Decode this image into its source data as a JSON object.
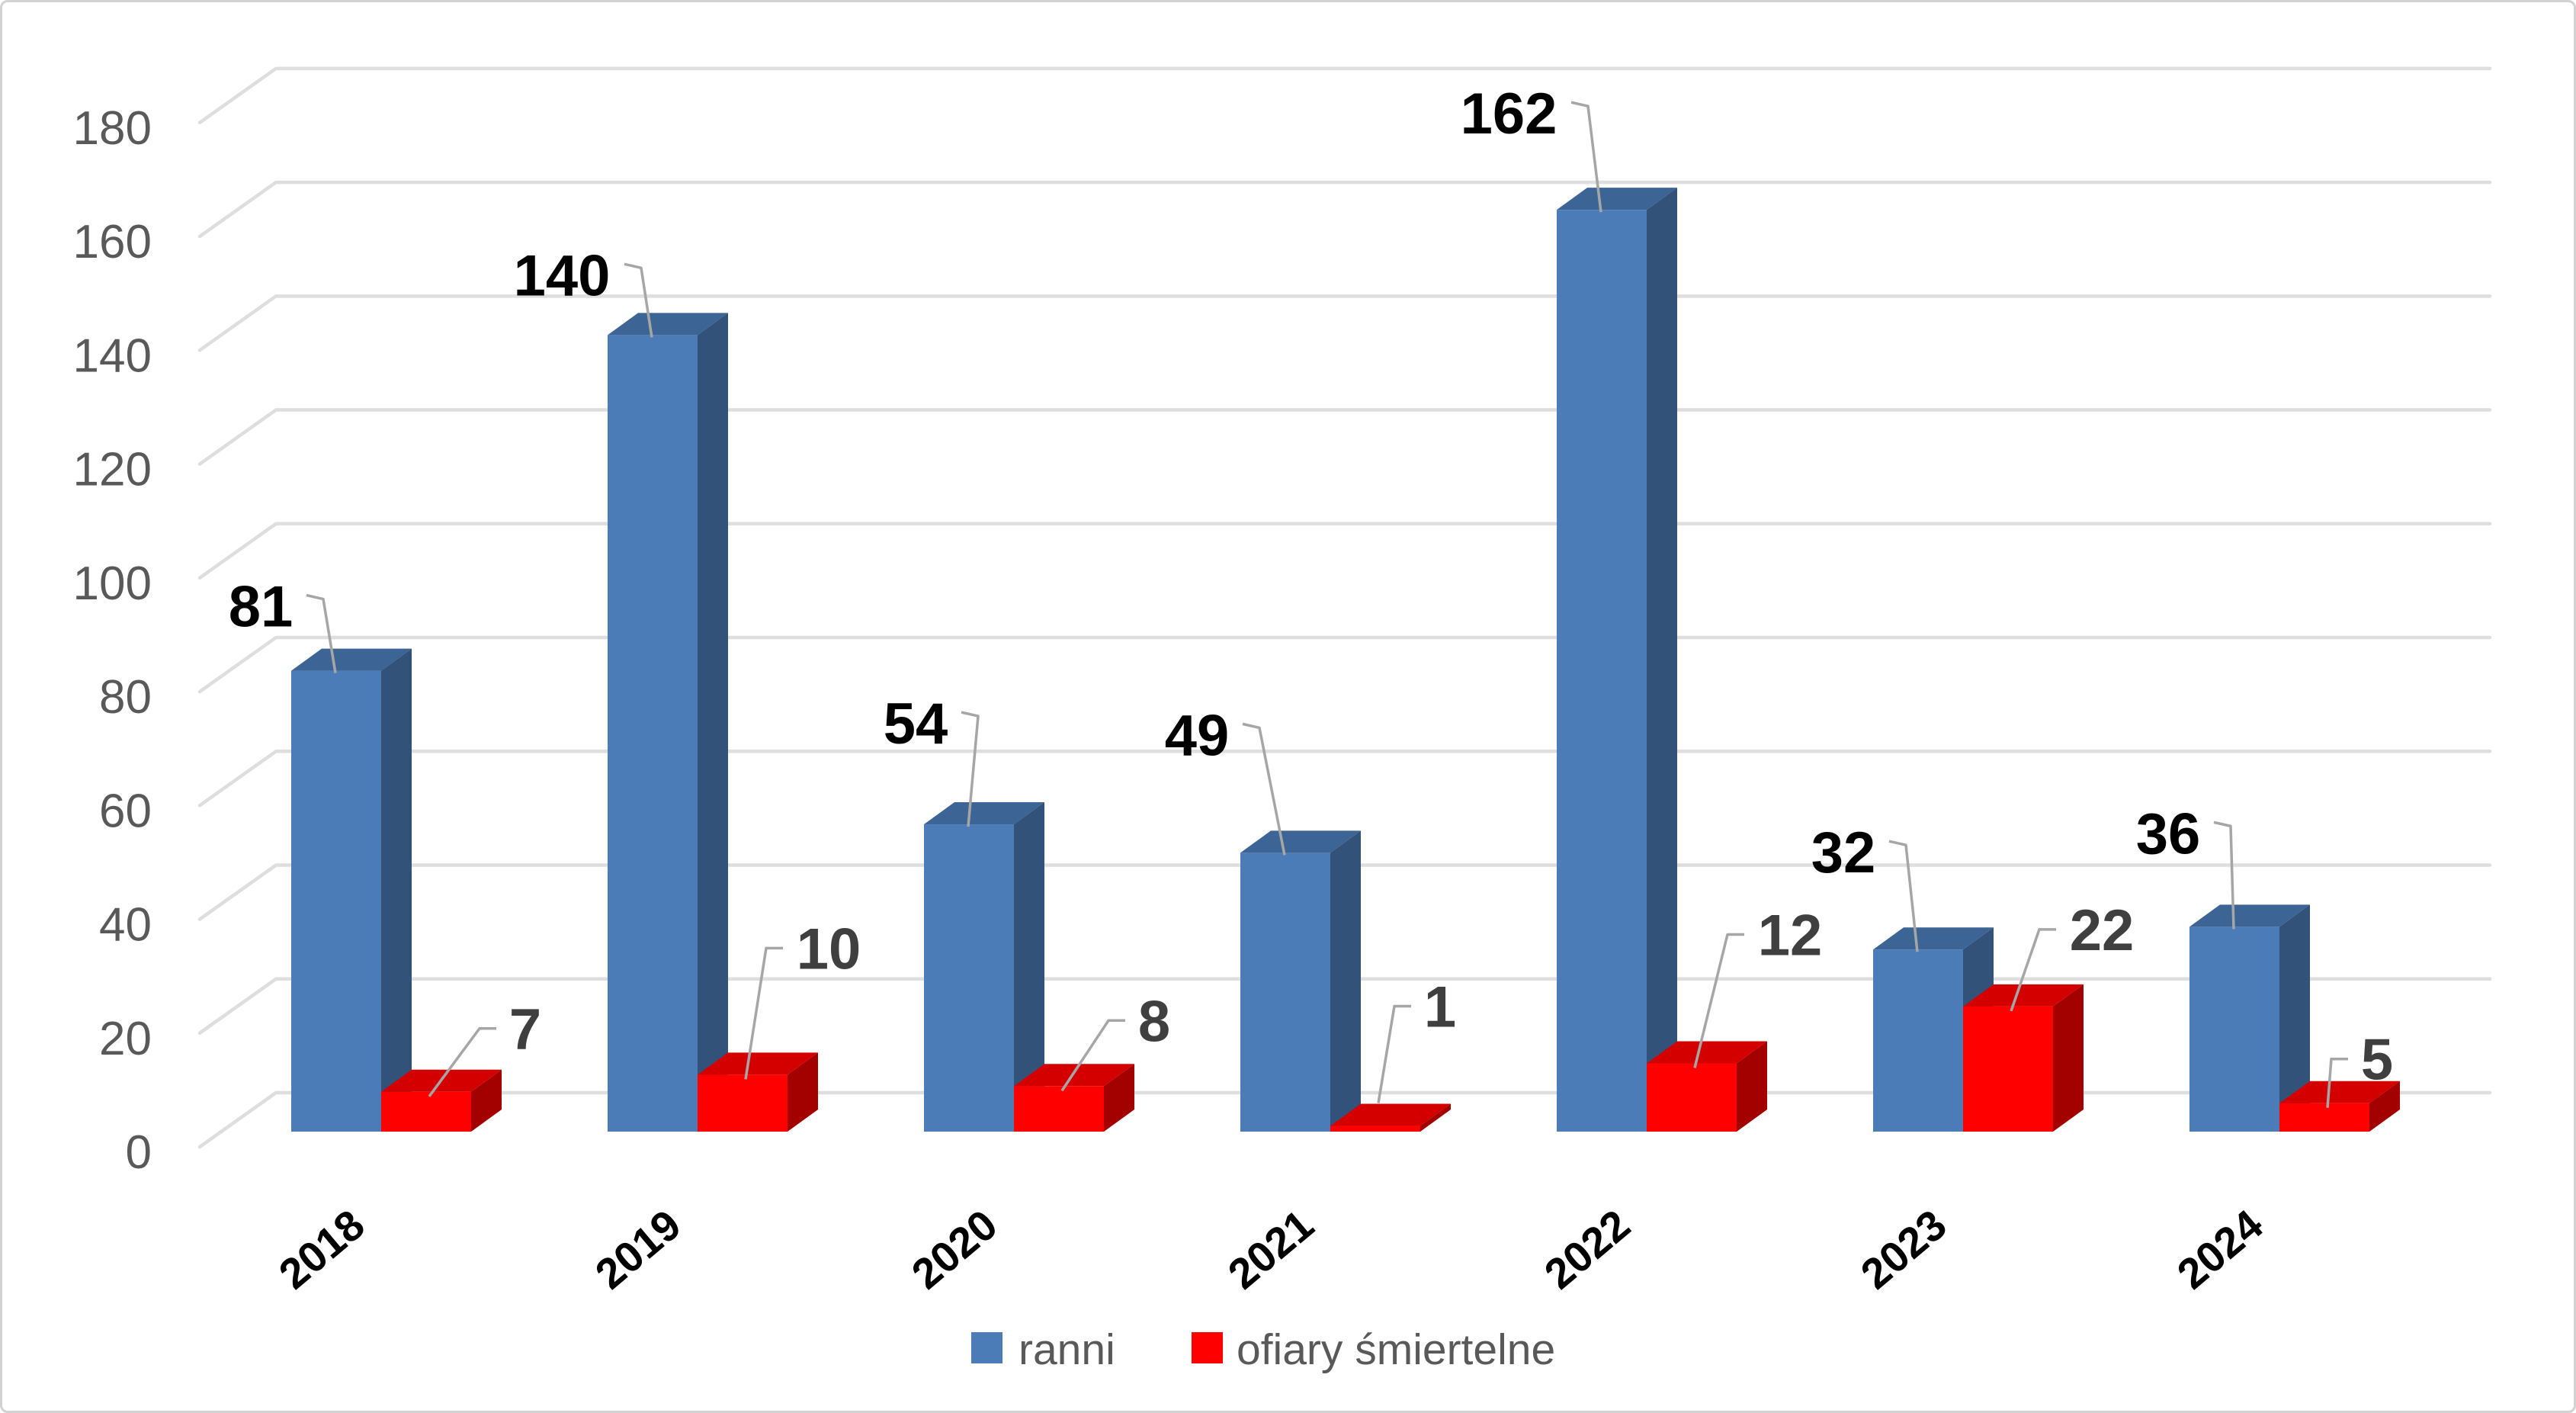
{
  "chart_data": {
    "type": "bar",
    "variant": "3d-clustered-column",
    "title": "",
    "xlabel": "",
    "ylabel": "",
    "categories": [
      "2018",
      "2019",
      "2020",
      "2021",
      "2022",
      "2023",
      "2024"
    ],
    "series": [
      {
        "name": "ranni",
        "color": "#4c7cb8",
        "values": [
          81,
          140,
          54,
          49,
          162,
          32,
          36
        ]
      },
      {
        "name": "ofiary śmiertelne",
        "color": "#ff0000",
        "values": [
          7,
          10,
          8,
          1,
          12,
          22,
          5
        ]
      }
    ],
    "ylim": [
      0,
      180
    ],
    "ytick_step": 20,
    "grid": true,
    "legend_position": "bottom"
  },
  "colors": {
    "blue_front": "#4c7cb8",
    "blue_top": "#3c6494",
    "blue_side": "#33527a",
    "red_front": "#ff0000",
    "red_top": "#d40000",
    "red_side": "#a30000",
    "gridline": "#dedede",
    "leader": "#a6a6a6",
    "axis_text": "#595959",
    "label_blue_series": "#000000",
    "label_red_series": "#3f3f3f"
  }
}
